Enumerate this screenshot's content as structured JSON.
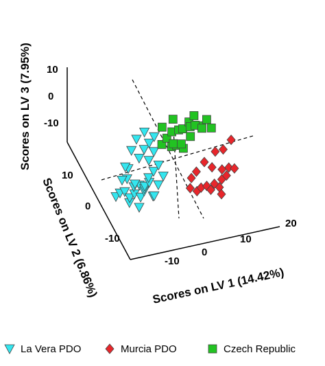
{
  "chart_data": {
    "type": "scatter",
    "projection": "3d",
    "xlabel": "Scores on LV 1 (14.42%)",
    "ylabel": "Scores on LV 2 (6.86%)",
    "zlabel": "Scores on LV 3 (7.95%)",
    "xticks": [
      "-10",
      "0",
      "10",
      "20"
    ],
    "yticks": [
      "10",
      "0",
      "-10"
    ],
    "zticks": [
      "10",
      "0",
      "-10"
    ],
    "legend_position": "bottom",
    "series": [
      {
        "name": "La Vera PDO",
        "marker": "triangle-down",
        "color": "#33e6ef",
        "points": [
          [
            -20,
            0,
            -4
          ],
          [
            -18,
            2,
            -5
          ],
          [
            -17,
            0,
            -3
          ],
          [
            -16,
            -2,
            -6
          ],
          [
            -15,
            4,
            -2
          ],
          [
            -15,
            1,
            -7
          ],
          [
            -14,
            -1,
            -4
          ],
          [
            -14,
            6,
            0
          ],
          [
            -13,
            3,
            -5
          ],
          [
            -13,
            -3,
            -8
          ],
          [
            -12,
            0,
            -2
          ],
          [
            -12,
            5,
            -6
          ],
          [
            -11,
            2,
            -9
          ],
          [
            -11,
            -2,
            -3
          ],
          [
            -10,
            7,
            2
          ],
          [
            -10,
            1,
            -5
          ],
          [
            -9,
            4,
            -7
          ],
          [
            -9,
            -1,
            -1
          ],
          [
            -8,
            8,
            4
          ],
          [
            -8,
            3,
            -3
          ],
          [
            -8,
            -2,
            -6
          ],
          [
            -7,
            6,
            1
          ],
          [
            -7,
            0,
            -8
          ],
          [
            -6,
            9,
            5
          ],
          [
            -6,
            4,
            -2
          ],
          [
            -5,
            2,
            -6
          ],
          [
            -5,
            7,
            3
          ],
          [
            -4,
            5,
            -1
          ],
          [
            -4,
            10,
            6
          ],
          [
            -3,
            3,
            -4
          ],
          [
            -12,
            9,
            4
          ],
          [
            -15,
            6,
            1
          ],
          [
            -10,
            10,
            7
          ],
          [
            -7,
            11,
            8
          ],
          [
            -17,
            3,
            -1
          ]
        ]
      },
      {
        "name": "Murcia PDO",
        "marker": "diamond",
        "color": "#e8262b",
        "points": [
          [
            4,
            -4,
            -5
          ],
          [
            5,
            -2,
            -3
          ],
          [
            6,
            -5,
            -6
          ],
          [
            7,
            -1,
            -2
          ],
          [
            8,
            -3,
            -7
          ],
          [
            9,
            -6,
            -4
          ],
          [
            10,
            0,
            0
          ],
          [
            11,
            -4,
            -8
          ],
          [
            12,
            -2,
            -1
          ],
          [
            13,
            -7,
            -5
          ],
          [
            14,
            1,
            2
          ],
          [
            15,
            -3,
            -6
          ],
          [
            16,
            -5,
            -3
          ],
          [
            17,
            2,
            1
          ],
          [
            18,
            -1,
            -4
          ],
          [
            19,
            -4,
            -2
          ],
          [
            20,
            3,
            3
          ],
          [
            14,
            -6,
            -9
          ],
          [
            11,
            -8,
            -2
          ],
          [
            16,
            0,
            -5
          ]
        ]
      },
      {
        "name": "Czech Republic",
        "marker": "square",
        "color": "#22c322",
        "points": [
          [
            -2,
            8,
            4
          ],
          [
            0,
            9,
            5
          ],
          [
            1,
            7,
            3
          ],
          [
            2,
            10,
            6
          ],
          [
            3,
            8,
            2
          ],
          [
            4,
            9,
            7
          ],
          [
            5,
            7,
            1
          ],
          [
            6,
            11,
            5
          ],
          [
            -1,
            11,
            8
          ],
          [
            3,
            12,
            9
          ],
          [
            6,
            4,
            14
          ],
          [
            8,
            5,
            15
          ],
          [
            10,
            3,
            12
          ],
          [
            12,
            4,
            13
          ],
          [
            13,
            2,
            11
          ],
          [
            7,
            6,
            10
          ],
          [
            9,
            7,
            9
          ],
          [
            11,
            6,
            8
          ],
          [
            1,
            5,
            6
          ],
          [
            4,
            6,
            4
          ],
          [
            8,
            9,
            3
          ]
        ]
      }
    ]
  }
}
